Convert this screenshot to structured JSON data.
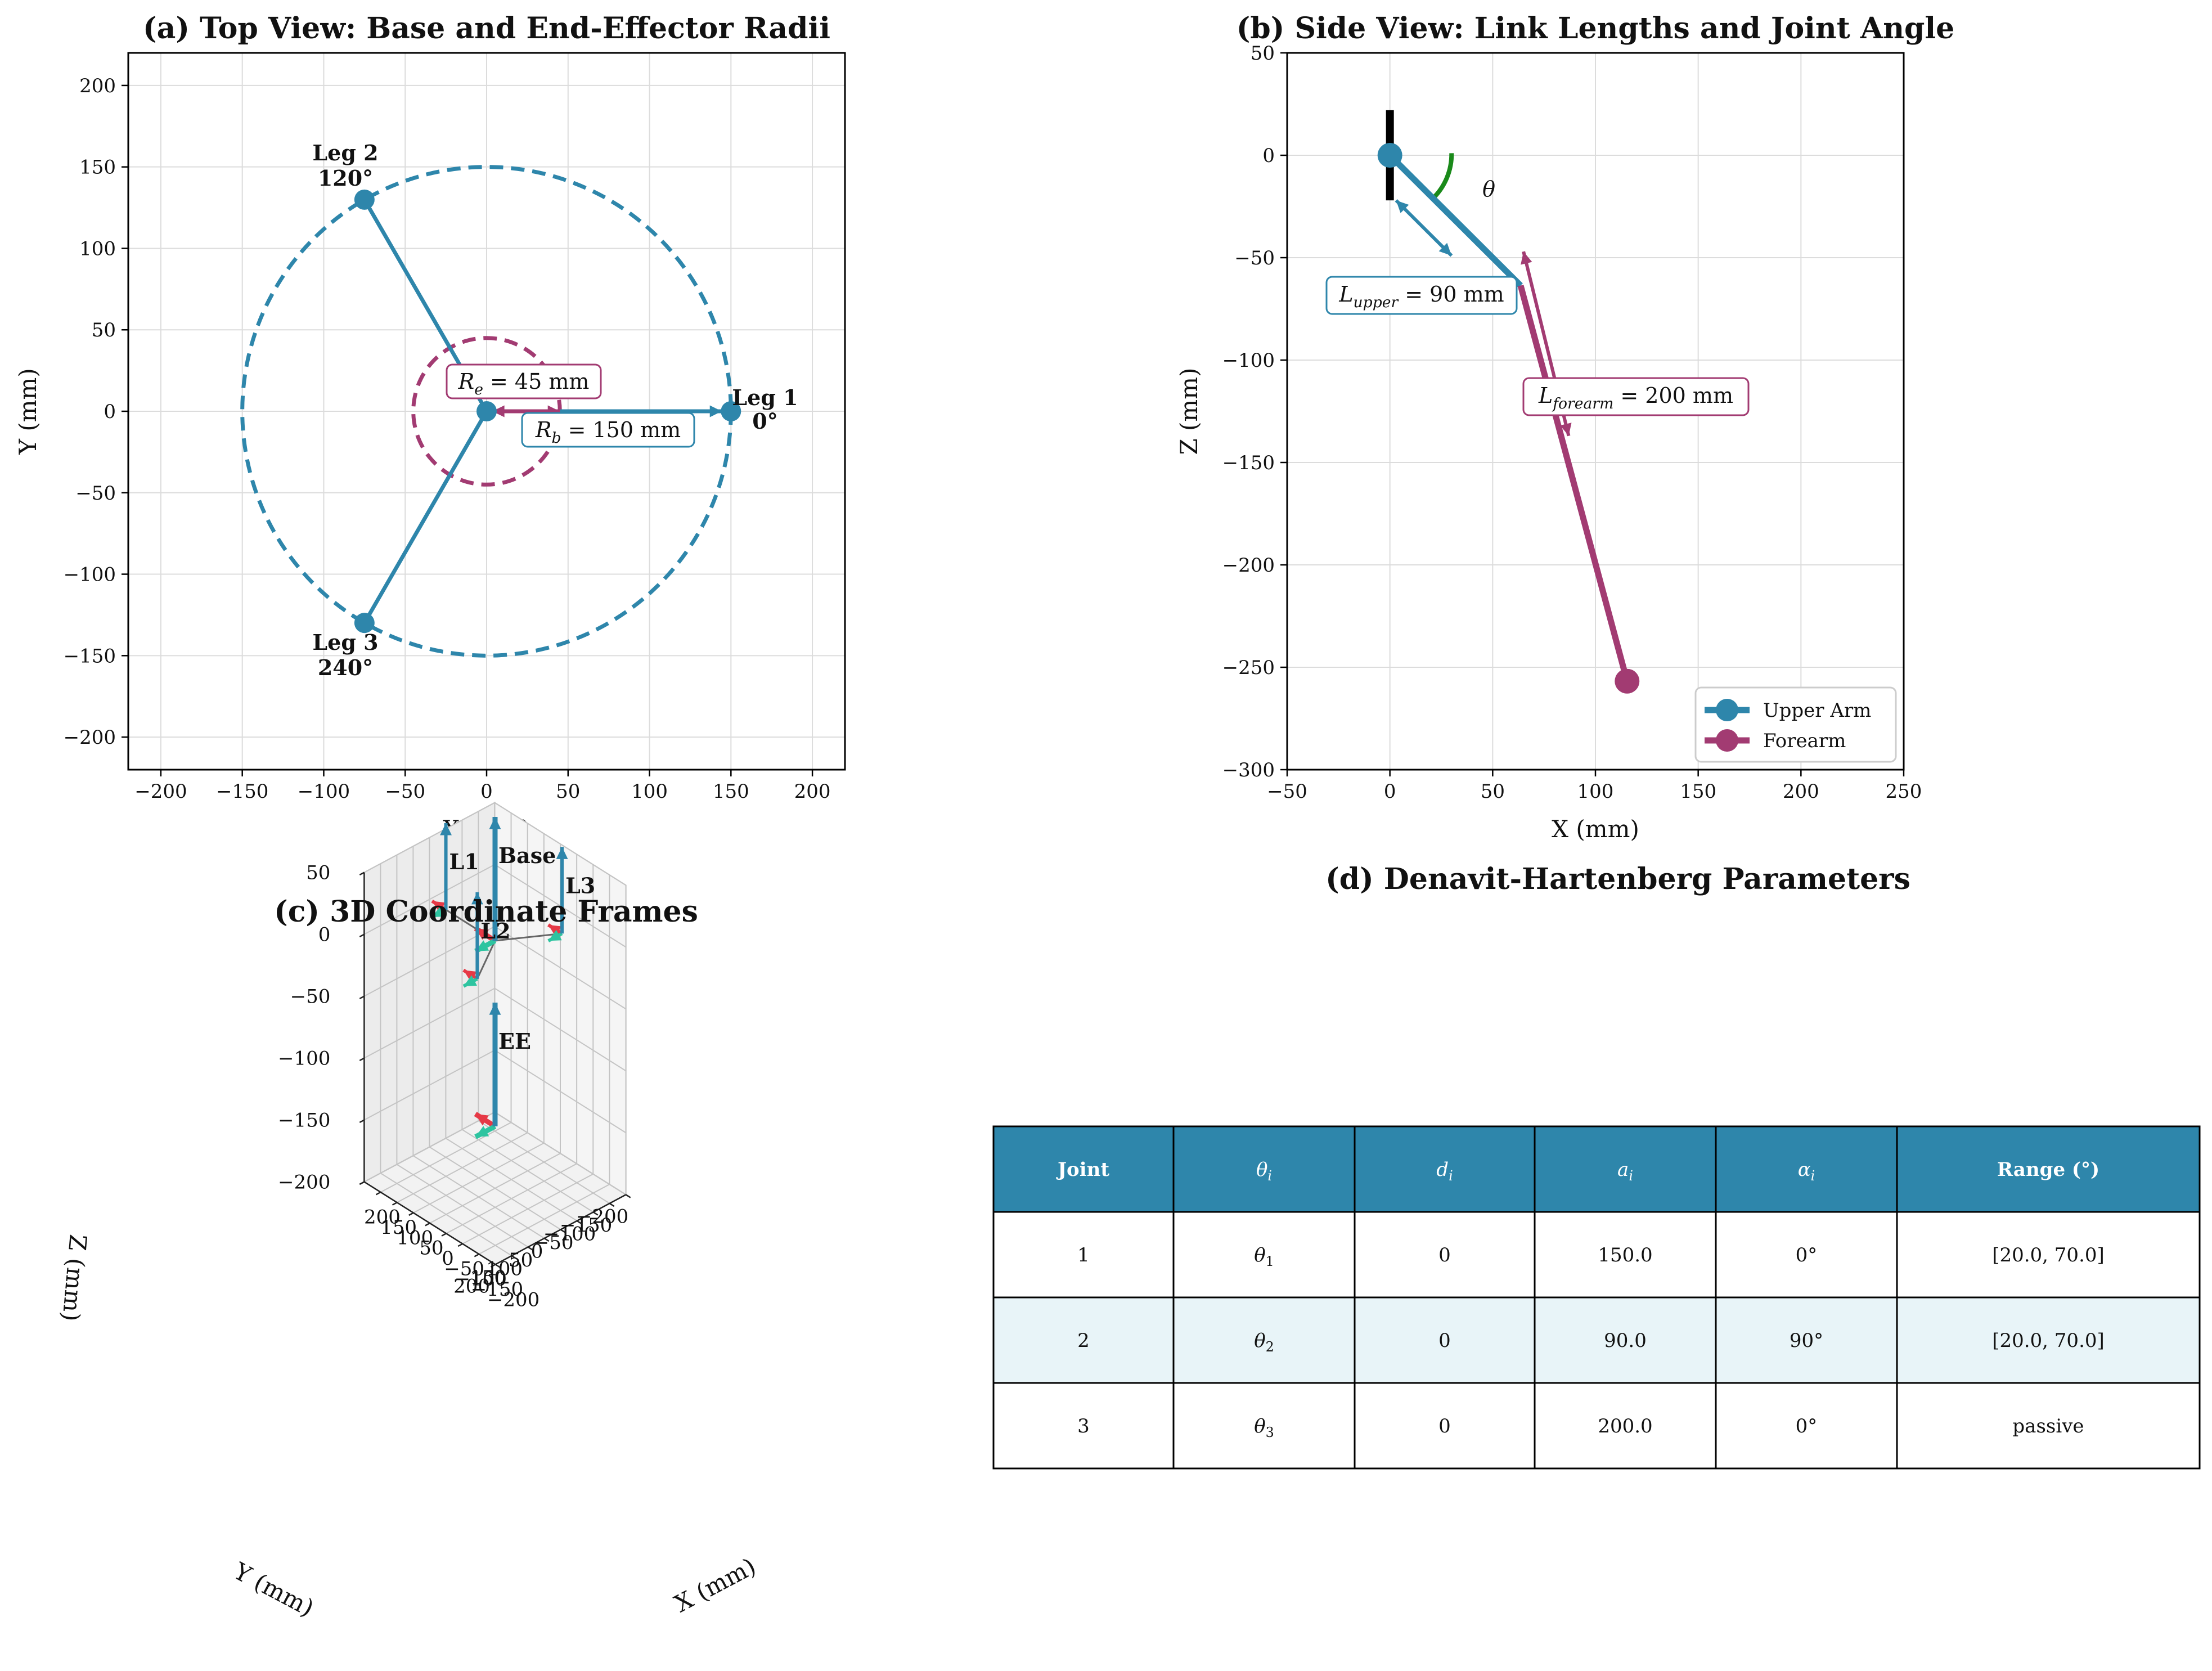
{
  "colors": {
    "base": "#2e86ab",
    "effector": "#a23b72",
    "x_axis": "#e63946",
    "y_axis": "#2ec4a0",
    "z_axis": "#2e86ab",
    "angle": "#1a8a1a",
    "table_header": "#2e86ab",
    "table_alt_row": "#e8f4f8"
  },
  "chart_data": [
    {
      "id": "a",
      "type": "scatter",
      "title": "(a) Top View: Base and End-Effector Radii",
      "xlabel": "X (mm)",
      "ylabel": "Y (mm)",
      "xlim": [
        -220,
        220
      ],
      "ylim": [
        -220,
        220
      ],
      "xticks": [
        -200,
        -150,
        -100,
        -50,
        0,
        50,
        100,
        150,
        200
      ],
      "yticks": [
        -200,
        -150,
        -100,
        -50,
        0,
        50,
        100,
        150,
        200
      ],
      "grid": true,
      "circles": [
        {
          "name": "base",
          "r": 150,
          "dashed": true
        },
        {
          "name": "effector",
          "r": 45,
          "dashed": true
        }
      ],
      "legs": [
        {
          "name": "Leg 1",
          "angle": "0°",
          "x": 150,
          "y": 0
        },
        {
          "name": "Leg 2",
          "angle": "120°",
          "x": -75,
          "y": 129.9
        },
        {
          "name": "Leg 3",
          "angle": "240°",
          "x": -75,
          "y": -129.9
        }
      ],
      "center": {
        "x": 0,
        "y": 0
      },
      "annotations": [
        {
          "sym": "R",
          "sub": "e",
          "text": " = 45 mm",
          "x": 22,
          "y": 19
        },
        {
          "sym": "R",
          "sub": "b",
          "text": " = 150 mm",
          "x": 75,
          "y": -10
        }
      ]
    },
    {
      "id": "b",
      "type": "line",
      "title": "(b) Side View: Link Lengths and Joint Angle",
      "xlabel": "X (mm)",
      "ylabel": "Z (mm)",
      "xlim": [
        -50,
        250
      ],
      "ylim": [
        -300,
        50
      ],
      "xticks": [
        -50,
        0,
        50,
        100,
        150,
        200,
        250
      ],
      "yticks": [
        -300,
        -250,
        -200,
        -150,
        -100,
        -50,
        0,
        50
      ],
      "grid": true,
      "series": [
        {
          "name": "Upper Arm",
          "x": [
            0,
            63.6
          ],
          "y": [
            0,
            -63.6
          ]
        },
        {
          "name": "Forearm",
          "x": [
            63.6,
            115.4
          ],
          "y": [
            -63.6,
            -256.8
          ]
        }
      ],
      "angle_label": "θ",
      "annotations": [
        {
          "sym": "L",
          "sub": "upper",
          "text": " = 90 mm",
          "x": -2,
          "y": -68
        },
        {
          "sym": "L",
          "sub": "forearm",
          "text": " = 200 mm",
          "x": 130,
          "y": -117
        }
      ],
      "legend": {
        "position": "lower-right",
        "entries": [
          "Upper Arm",
          "Forearm"
        ]
      }
    },
    {
      "id": "c",
      "type": "scatter",
      "title": "(c) 3D Coordinate Frames",
      "xlabel": "X (mm)",
      "ylabel": "Y (mm)",
      "zlabel": "Z (mm)",
      "xticks": [
        -200,
        -150,
        -100,
        -50,
        0,
        50,
        100,
        150,
        200
      ],
      "yticks": [
        -200,
        -150,
        -100,
        -50,
        0,
        50,
        100,
        150,
        200
      ],
      "zticks": [
        -200,
        -150,
        -100,
        -50,
        0,
        50
      ],
      "xlim": [
        -200,
        200
      ],
      "ylim": [
        -200,
        200
      ],
      "zlim": [
        -200,
        50
      ],
      "frames": [
        {
          "name": "Base",
          "x": 0,
          "y": 0,
          "z": 0
        },
        {
          "name": "L1",
          "x": 150,
          "y": 0,
          "z": 0
        },
        {
          "name": "L2",
          "x": -75,
          "y": 129.9,
          "z": 0
        },
        {
          "name": "L3",
          "x": -75,
          "y": -129.9,
          "z": 0
        },
        {
          "name": "EE",
          "x": 0,
          "y": 0,
          "z": -150
        }
      ],
      "links": [
        [
          "Base",
          "L1"
        ],
        [
          "Base",
          "L2"
        ],
        [
          "Base",
          "L3"
        ]
      ]
    },
    {
      "id": "d",
      "type": "table",
      "title": "(d) Denavit-Hartenberg Parameters",
      "columns": [
        {
          "sym": "Joint",
          "sub": "",
          "bold": true
        },
        {
          "sym": "θ",
          "sub": "i",
          "bold": false
        },
        {
          "sym": "d",
          "sub": "i",
          "bold": false
        },
        {
          "sym": "a",
          "sub": "i",
          "bold": false
        },
        {
          "sym": "α",
          "sub": "i",
          "bold": false
        },
        {
          "sym": "Range (°)",
          "sub": "",
          "bold": true
        }
      ],
      "rows": [
        [
          {
            "t": "1"
          },
          {
            "t": "θ",
            "sub": "1"
          },
          {
            "t": "0"
          },
          {
            "t": "150.0"
          },
          {
            "t": "0°"
          },
          {
            "t": "[20.0, 70.0]"
          }
        ],
        [
          {
            "t": "2"
          },
          {
            "t": "θ",
            "sub": "2"
          },
          {
            "t": "0"
          },
          {
            "t": "90.0"
          },
          {
            "t": "90°"
          },
          {
            "t": "[20.0, 70.0]"
          }
        ],
        [
          {
            "t": "3"
          },
          {
            "t": "θ",
            "sub": "3"
          },
          {
            "t": "0"
          },
          {
            "t": "200.0"
          },
          {
            "t": "0°"
          },
          {
            "t": "passive"
          }
        ]
      ]
    }
  ]
}
